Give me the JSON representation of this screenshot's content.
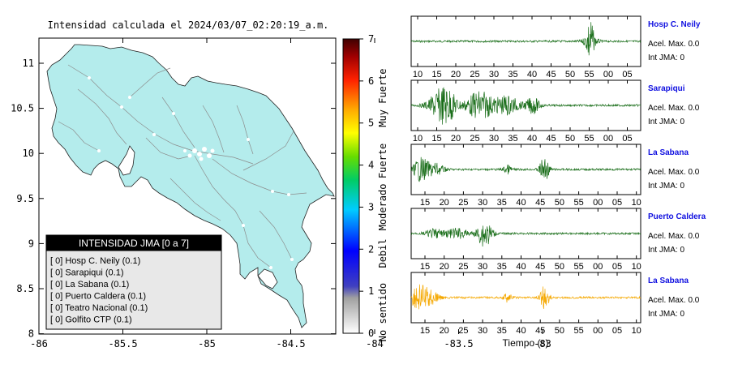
{
  "map": {
    "title": "Intensidad calculada el 2024/03/07_02:20:19_a.m.",
    "x_ticks": [
      "-86",
      "-85.5",
      "-85",
      "-84.5",
      "-84",
      "-83.5",
      "-83"
    ],
    "y_ticks": [
      "11",
      "10.5",
      "10",
      "9.5",
      "9",
      "8.5",
      "8"
    ]
  },
  "colorbar": {
    "ticks": [
      "0",
      "1",
      "2",
      "3",
      "4",
      "5",
      "6",
      "7"
    ],
    "categories": [
      "No sentido",
      "Debil",
      "Moderado",
      "Fuerte",
      "Muy Fuerte"
    ]
  },
  "legend": {
    "title": "INTENSIDAD JMA [0 a 7]",
    "items": [
      "[ 0]  Hosp C. Neily (0.1)",
      "[ 0]  Sarapiqui (0.1)",
      "[ 0]  La Sabana (0.1)",
      "[ 0]  Puerto Caldera (0.1)",
      "[ 0]  Teatro Nacional (0.1)",
      "[ 0]  Golfito CTP (0.1)"
    ]
  },
  "waveforms": {
    "xlabel": "Tiempo (s)",
    "panels": [
      {
        "station": "Hosp C. Neily",
        "acel": "Acel. Max. 0.0",
        "int": "Int JMA: 0",
        "color": "#1a6e1a",
        "ticks": [
          "10",
          "15",
          "20",
          "25",
          "30",
          "35",
          "40",
          "45",
          "50",
          "55",
          "00",
          "05"
        ]
      },
      {
        "station": "Sarapiqui",
        "acel": "Acel. Max. 0.0",
        "int": "Int JMA: 0",
        "color": "#1a6e1a",
        "ticks": [
          "10",
          "15",
          "20",
          "25",
          "30",
          "35",
          "40",
          "45",
          "50",
          "55",
          "00",
          "05"
        ]
      },
      {
        "station": "La Sabana",
        "acel": "Acel. Max. 0.0",
        "int": "Int JMA: 0",
        "color": "#1a6e1a",
        "ticks": [
          "15",
          "20",
          "25",
          "30",
          "35",
          "40",
          "45",
          "50",
          "55",
          "00",
          "05",
          "10"
        ]
      },
      {
        "station": "Puerto Caldera",
        "acel": "Acel. Max. 0.0",
        "int": "Int JMA: 0",
        "color": "#1a6e1a",
        "ticks": [
          "15",
          "20",
          "25",
          "30",
          "35",
          "40",
          "45",
          "50",
          "55",
          "00",
          "05",
          "10"
        ]
      },
      {
        "station": "La Sabana",
        "acel": "Acel. Max. 0.0",
        "int": "Int JMA: 0",
        "color": "#f5a800",
        "ticks": [
          "15",
          "20",
          "25",
          "30",
          "35",
          "40",
          "45",
          "50",
          "55",
          "00",
          "05",
          "10"
        ]
      }
    ]
  },
  "chart_data": [
    {
      "type": "scatter",
      "title": "Intensidad calculada el 2024/03/07_02:20:19_a.m.",
      "xlim": [
        -86,
        -82.5
      ],
      "ylim": [
        8,
        11.3
      ],
      "stations": []
    },
    {
      "type": "line",
      "xlabel": "Tiempo (s)",
      "ylabel": "",
      "series": []
    }
  ]
}
